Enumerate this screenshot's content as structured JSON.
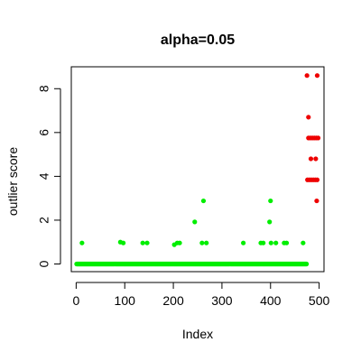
{
  "chart_data": {
    "type": "scatter",
    "title": "alpha=0.05",
    "xlabel": "Index",
    "ylabel": "outlier score",
    "xlim": [
      -10,
      510
    ],
    "ylim": [
      -0.35,
      9.0
    ],
    "xticks": [
      0,
      100,
      200,
      300,
      400,
      500
    ],
    "yticks": [
      0,
      2,
      4,
      6,
      8
    ],
    "grid": false,
    "legend": "none",
    "colors": {
      "inlier": "#00ee00",
      "outlier": "#ee0000"
    },
    "series": [
      {
        "color": "#00ee00",
        "points": [
          [
            12,
            0.96
          ],
          [
            91,
            1.0
          ],
          [
            97,
            0.96
          ],
          [
            137,
            0.96
          ],
          [
            146,
            0.96
          ],
          [
            202,
            0.88
          ],
          [
            208,
            0.96
          ],
          [
            213,
            0.96
          ],
          [
            244,
            1.92
          ],
          [
            259,
            0.96
          ],
          [
            262,
            2.88
          ],
          [
            268,
            0.96
          ],
          [
            344,
            0.96
          ],
          [
            380,
            0.96
          ],
          [
            385,
            0.96
          ],
          [
            398,
            1.92
          ],
          [
            400,
            2.88
          ],
          [
            401,
            0.96
          ],
          [
            411,
            0.96
          ],
          [
            428,
            0.96
          ],
          [
            433,
            0.96
          ],
          [
            467,
            0.96
          ]
        ],
        "baseline": {
          "x_from": 1,
          "x_to": 474,
          "y": 0
        }
      },
      {
        "color": "#ee0000",
        "points": [
          [
            475,
            8.6
          ],
          [
            496,
            8.6
          ],
          [
            478,
            6.7
          ],
          [
            478,
            5.75
          ],
          [
            482,
            5.75
          ],
          [
            486,
            5.75
          ],
          [
            490,
            5.75
          ],
          [
            494,
            5.75
          ],
          [
            498,
            5.75
          ],
          [
            483,
            4.8
          ],
          [
            493,
            4.8
          ],
          [
            476,
            3.84
          ],
          [
            480,
            3.84
          ],
          [
            484,
            3.84
          ],
          [
            488,
            3.84
          ],
          [
            492,
            3.84
          ],
          [
            496,
            3.84
          ],
          [
            495,
            2.88
          ]
        ]
      }
    ]
  }
}
